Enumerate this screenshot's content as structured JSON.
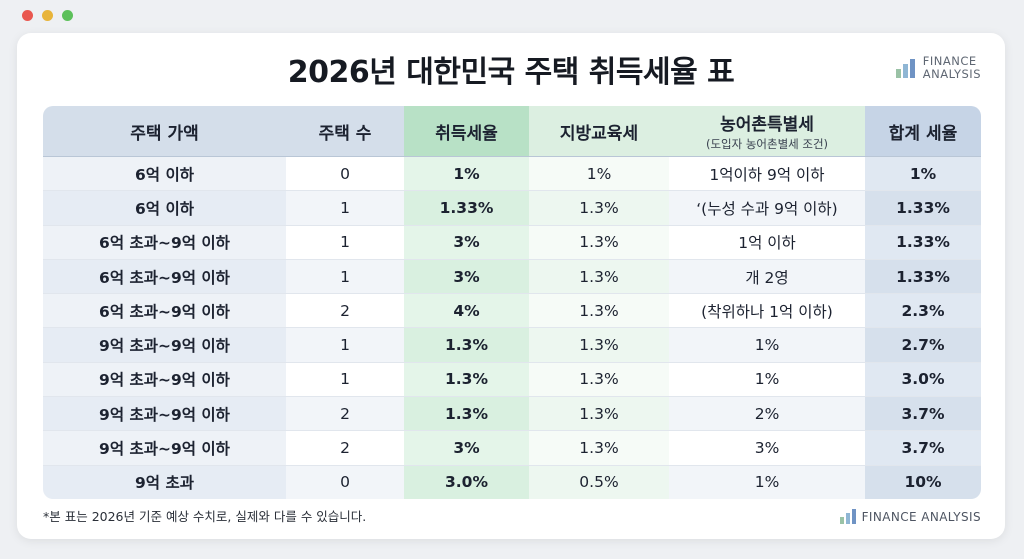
{
  "window": {
    "controls": [
      "close",
      "minimize",
      "maximize"
    ]
  },
  "title": "2026년 대한민국 주택 취득세율 표",
  "brand": {
    "line1": "FINANCE",
    "line2": "ANALYSIS",
    "footer": "FINANCE ANALYSIS",
    "icon": "bar-chart-icon"
  },
  "table": {
    "headers": {
      "price": "주택 가액",
      "count": "주택 수",
      "acq": "취득세율",
      "local": "지방교육세",
      "rural": "농어촌특별세",
      "rural_sub": "(도입자 농어촌별세 조건)",
      "total": "합계 세율"
    },
    "rows": [
      {
        "price": "6억 이하",
        "count": "0",
        "acq": "1%",
        "local": "1%",
        "rural": "1억이하 9억 이하",
        "total": "1%"
      },
      {
        "price": "6억 이하",
        "count": "1",
        "acq": "1.33%",
        "local": "1.3%",
        "rural": "‘(누성 수과 9억 이하)",
        "total": "1.33%"
      },
      {
        "price": "6억 초과~9억 이하",
        "count": "1",
        "acq": "3%",
        "local": "1.3%",
        "rural": "1억 이하",
        "total": "1.33%"
      },
      {
        "price": "6억 초과~9억 이하",
        "count": "1",
        "acq": "3%",
        "local": "1.3%",
        "rural": "개 2영",
        "total": "1.33%"
      },
      {
        "price": "6억 초과~9억 이하",
        "count": "2",
        "acq": "4%",
        "local": "1.3%",
        "rural": "(착위하나 1억 이하)",
        "total": "2.3%"
      },
      {
        "price": "9억 초과~9억 이하",
        "count": "1",
        "acq": "1.3%",
        "local": "1.3%",
        "rural": "1%",
        "total": "2.7%"
      },
      {
        "price": "9억 초과~9억 이하",
        "count": "1",
        "acq": "1.3%",
        "local": "1.3%",
        "rural": "1%",
        "total": "3.0%"
      },
      {
        "price": "9억 초과~9억 이하",
        "count": "2",
        "acq": "1.3%",
        "local": "1.3%",
        "rural": "2%",
        "total": "3.7%"
      },
      {
        "price": "9억 초과~9억 이하",
        "count": "2",
        "acq": "3%",
        "local": "1.3%",
        "rural": "3%",
        "total": "3.7%"
      },
      {
        "price": "9억 초과",
        "count": "0",
        "acq": "3.0%",
        "local": "0.5%",
        "rural": "1%",
        "total": "10%"
      }
    ]
  },
  "footnote": "*본 표는 2026년 기준 예상 수치로, 실제와 다를 수 있습니다.",
  "colors": {
    "header_blue": "#d4deea",
    "header_green": "#b8e1c6",
    "accent_total": "#c6d4e6"
  }
}
